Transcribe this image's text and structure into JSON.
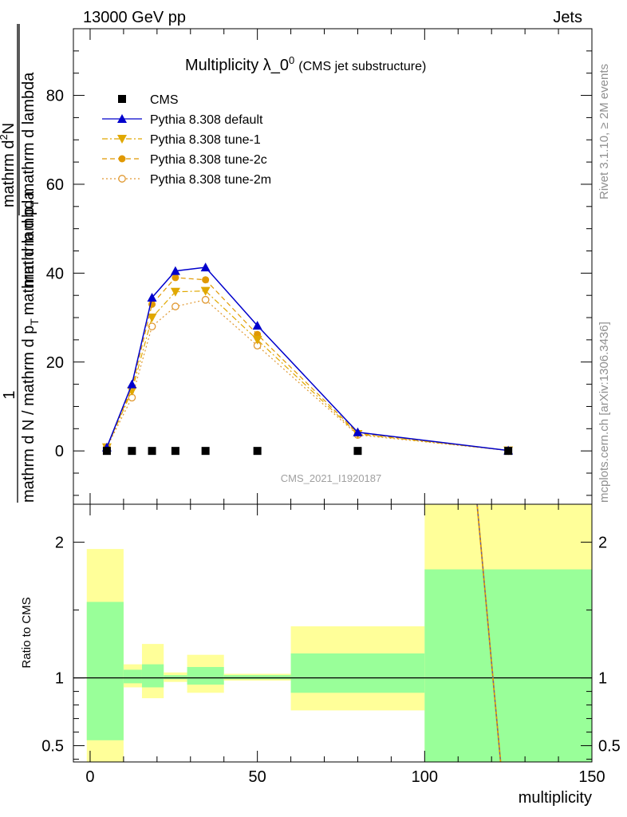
{
  "header": {
    "left": "13000 GeV pp",
    "right": "Jets"
  },
  "side_text": {
    "top": "Rivet 3.1.10, ≥ 2M events",
    "bottom": "mcplots.cern.ch [arXiv:1306.3436]"
  },
  "main_plot": {
    "title": "Multiplicity λ_0",
    "title_sup": "0",
    "title_suffix": "(CMS jet substructure)",
    "ylabel_main": "mathrm d N / mathrm d p",
    "ylabel_sub": "T",
    "ylabel_tail": "mathrm d lambda",
    "ylabel_numerator": "1",
    "ylabel_frac_top_a": "mathrm d",
    "ylabel_frac_top_sup": "2",
    "ylabel_frac_top_b": "N",
    "ylabel_frac_bot_a": "mathrm d p",
    "ylabel_frac_bot_sub": "T",
    "ylabel_frac_bot_b": "mathrm d lambda",
    "analysis_id": "CMS_2021_I1920187"
  },
  "ratio_plot": {
    "ylabel": "Ratio to CMS",
    "xlabel": "multiplicity"
  },
  "chart_data": [
    {
      "type": "line",
      "xlim": [
        -5,
        150
      ],
      "ylim": [
        -12,
        95
      ],
      "yticks": [
        0,
        20,
        40,
        60,
        80
      ],
      "xticks": [
        0,
        50,
        100,
        150
      ],
      "legend": "top-left",
      "series": [
        {
          "name": "CMS",
          "marker": "square",
          "color": "#000000",
          "x": [
            5,
            12.5,
            18.5,
            25.5,
            34.5,
            50,
            80,
            125
          ],
          "y": [
            0,
            0,
            0,
            0,
            0,
            0,
            0,
            0
          ]
        },
        {
          "name": "Pythia 8.308 default",
          "marker": "triangle-up",
          "line": "solid",
          "color": "#0000cc",
          "x": [
            5,
            12.5,
            18.5,
            25.5,
            34.5,
            50,
            80,
            125
          ],
          "y": [
            0.8,
            15,
            34.5,
            40.5,
            41.3,
            28.2,
            4.2,
            0.1
          ]
        },
        {
          "name": "Pythia 8.308 tune-1",
          "marker": "triangle-down",
          "line": "dashdot",
          "color": "#e0a800",
          "x": [
            5,
            12.5,
            18.5,
            25.5,
            34.5,
            50,
            80,
            125
          ],
          "y": [
            0.8,
            13.5,
            30,
            35.8,
            36,
            25,
            3.8,
            0.1
          ]
        },
        {
          "name": "Pythia 8.308 tune-2c",
          "marker": "circle",
          "line": "dashed",
          "color": "#e09800",
          "x": [
            5,
            12.5,
            18.5,
            25.5,
            34.5,
            50,
            80,
            125
          ],
          "y": [
            0.8,
            14.2,
            33,
            39,
            38.5,
            26.2,
            4.0,
            0.1
          ]
        },
        {
          "name": "Pythia 8.308 tune-2m",
          "marker": "open-circle",
          "line": "dotted",
          "color": "#e09830",
          "x": [
            5,
            12.5,
            18.5,
            25.5,
            34.5,
            50,
            80,
            125
          ],
          "y": [
            0.8,
            12,
            28,
            32.5,
            34,
            23.7,
            3.6,
            0.1
          ]
        }
      ]
    },
    {
      "type": "area",
      "ylim": [
        0.38,
        2.28
      ],
      "yticks": [
        0.5,
        1,
        2
      ],
      "ytick_labels": [
        "0.5",
        "1",
        "2"
      ],
      "band_bins": [
        {
          "x0": -1,
          "x1": 10,
          "yellow": [
            0.3,
            1.95
          ],
          "green": [
            0.54,
            1.56
          ]
        },
        {
          "x0": 10,
          "x1": 15.5,
          "yellow": [
            0.93,
            1.1
          ],
          "green": [
            0.96,
            1.06
          ]
        },
        {
          "x0": 15.5,
          "x1": 22,
          "yellow": [
            0.85,
            1.25
          ],
          "green": [
            0.93,
            1.1
          ]
        },
        {
          "x0": 22,
          "x1": 29,
          "yellow": [
            0.97,
            1.04
          ],
          "green": [
            0.99,
            1.02
          ]
        },
        {
          "x0": 29,
          "x1": 40,
          "yellow": [
            0.89,
            1.17
          ],
          "green": [
            0.95,
            1.08
          ]
        },
        {
          "x0": 40,
          "x1": 60,
          "yellow": [
            0.98,
            1.03
          ],
          "green": [
            0.99,
            1.02
          ]
        },
        {
          "x0": 60,
          "x1": 100,
          "yellow": [
            0.76,
            1.38
          ],
          "green": [
            0.89,
            1.18
          ]
        },
        {
          "x0": 100,
          "x1": 150,
          "yellow": [
            0.3,
            2.4
          ],
          "green": [
            0.3,
            1.8
          ]
        }
      ],
      "ratio_line": {
        "x": [
          114.5,
          123
        ],
        "y": [
          2.6,
          0.3
        ]
      }
    }
  ]
}
